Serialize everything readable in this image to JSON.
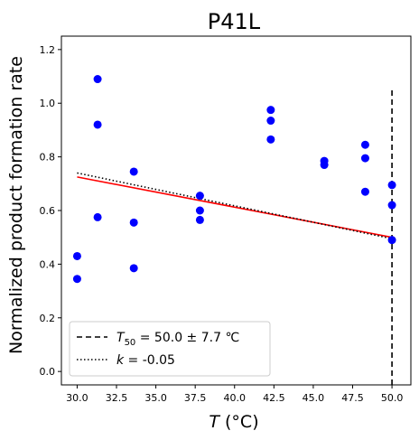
{
  "chart_data": {
    "type": "scatter",
    "title": "P41L",
    "xlabel": {
      "var": "T",
      "unit": " (°C)"
    },
    "ylabel": "Normalized product formation rate",
    "xlim": [
      29.0,
      51.2
    ],
    "ylim": [
      -0.05,
      1.25
    ],
    "xticks": [
      "30.0",
      "32.5",
      "35.0",
      "37.5",
      "40.0",
      "42.5",
      "45.0",
      "47.5",
      "50.0"
    ],
    "xtick_values": [
      30.0,
      32.5,
      35.0,
      37.5,
      40.0,
      42.5,
      45.0,
      47.5,
      50.0
    ],
    "yticks": [
      "0.0",
      "0.2",
      "0.4",
      "0.6",
      "0.8",
      "1.0",
      "1.2"
    ],
    "ytick_values": [
      0.0,
      0.2,
      0.4,
      0.6,
      0.8,
      1.0,
      1.2
    ],
    "points": {
      "color": "#0000ff",
      "x": [
        30.0,
        30.0,
        31.3,
        31.3,
        31.3,
        33.6,
        33.6,
        33.6,
        37.8,
        37.8,
        37.8,
        42.3,
        42.3,
        42.3,
        45.7,
        45.7,
        48.3,
        48.3,
        48.3,
        50.0,
        50.0,
        50.0
      ],
      "y": [
        0.43,
        0.345,
        1.09,
        0.92,
        0.575,
        0.745,
        0.555,
        0.385,
        0.655,
        0.6,
        0.565,
        0.975,
        0.935,
        0.865,
        0.785,
        0.77,
        0.845,
        0.795,
        0.67,
        0.695,
        0.62,
        0.49
      ]
    },
    "fit_line": {
      "color": "#ff0000",
      "x": [
        30.0,
        50.0
      ],
      "y": [
        0.725,
        0.5
      ]
    },
    "k_line": {
      "color": "#000000",
      "style": "dotted",
      "x": [
        30.0,
        50.0
      ],
      "y": [
        0.74,
        0.495
      ]
    },
    "t50_line": {
      "color": "#000000",
      "style": "dashed",
      "x": 50.0,
      "y": [
        -0.05,
        1.05
      ]
    },
    "legend": {
      "placement": "lower-left",
      "entries": [
        {
          "var": "T",
          "sub": "50",
          "text": " = 50.0 ± 7.7 ℃",
          "style": "dashed"
        },
        {
          "var": "k",
          "sub": "",
          "text": " = -0.05",
          "style": "dotted"
        }
      ]
    }
  }
}
